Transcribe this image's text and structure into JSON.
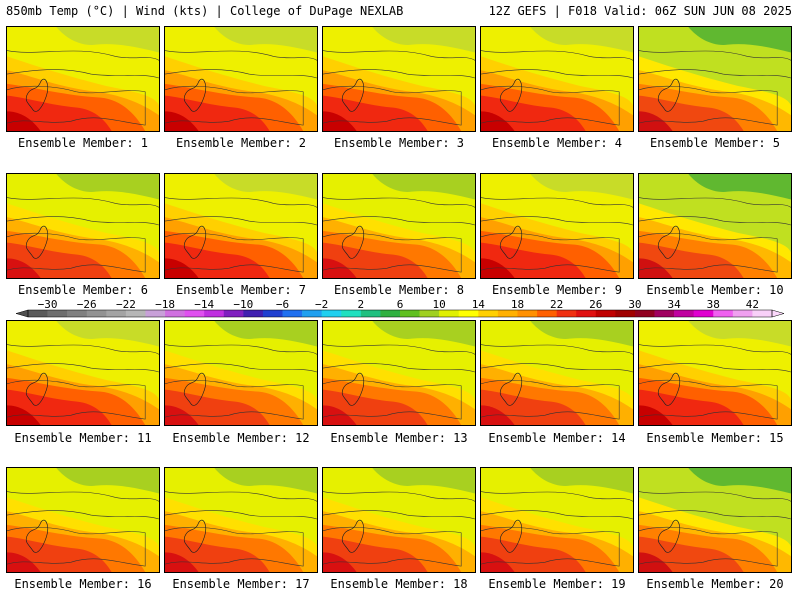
{
  "header": {
    "left": "850mb Temp (°C) | Wind (kts) | College of DuPage NEXLAB",
    "right": "12Z GEFS | F018 Valid: 06Z SUN JUN 08 2025"
  },
  "panels": [
    {
      "label": "Ensemble Member: 1",
      "palette": "hot"
    },
    {
      "label": "Ensemble Member: 2",
      "palette": "hot"
    },
    {
      "label": "Ensemble Member: 3",
      "palette": "hot"
    },
    {
      "label": "Ensemble Member: 4",
      "palette": "hot"
    },
    {
      "label": "Ensemble Member: 5",
      "palette": "cool"
    },
    {
      "label": "Ensemble Member: 6",
      "palette": "warm"
    },
    {
      "label": "Ensemble Member: 7",
      "palette": "hot"
    },
    {
      "label": "Ensemble Member: 8",
      "palette": "warm"
    },
    {
      "label": "Ensemble Member: 9",
      "palette": "hot"
    },
    {
      "label": "Ensemble Member: 10",
      "palette": "cool"
    },
    {
      "label": "Ensemble Member: 11",
      "palette": "hot"
    },
    {
      "label": "Ensemble Member: 12",
      "palette": "warm"
    },
    {
      "label": "Ensemble Member: 13",
      "palette": "warm"
    },
    {
      "label": "Ensemble Member: 14",
      "palette": "warm"
    },
    {
      "label": "Ensemble Member: 15",
      "palette": "hot"
    },
    {
      "label": "Ensemble Member: 16",
      "palette": "warm"
    },
    {
      "label": "Ensemble Member: 17",
      "palette": "warm"
    },
    {
      "label": "Ensemble Member: 18",
      "palette": "warm"
    },
    {
      "label": "Ensemble Member: 19",
      "palette": "warm"
    },
    {
      "label": "Ensemble Member: 20",
      "palette": "cool"
    }
  ],
  "colorbar": {
    "labels": [
      "−30",
      "−26",
      "−22",
      "−18",
      "−14",
      "−10",
      "−6",
      "−2",
      "2",
      "6",
      "10",
      "14",
      "18",
      "22",
      "26",
      "30",
      "34",
      "38",
      "42"
    ],
    "colors": [
      "#5a5a5a",
      "#6e6e6e",
      "#808080",
      "#929292",
      "#a4a4a4",
      "#b6b6b6",
      "#c8a0d8",
      "#d070e0",
      "#e050f0",
      "#c030e0",
      "#8020c0",
      "#4020b0",
      "#2040d0",
      "#2070f0",
      "#20a0f0",
      "#20d0f0",
      "#20e0c0",
      "#20c080",
      "#30b040",
      "#60c020",
      "#a0d020",
      "#e0f000",
      "#ffff00",
      "#ffd000",
      "#ffb000",
      "#ff9000",
      "#ff6000",
      "#f03010",
      "#e01010",
      "#c00000",
      "#a00000",
      "#900020",
      "#a00060",
      "#c000a0",
      "#e000d0",
      "#f060f0",
      "#f0a0f0",
      "#f8d0f8"
    ]
  }
}
